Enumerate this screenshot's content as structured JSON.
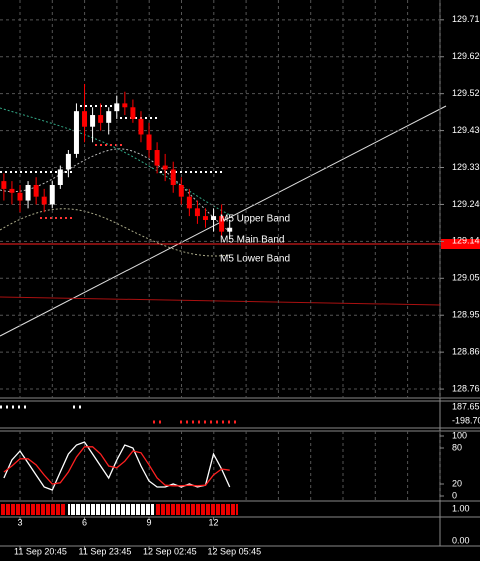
{
  "chart_data": [
    {
      "type": "candlestick",
      "x": [
        2.25,
        2.625,
        3,
        3.375,
        3.75,
        4.125,
        4.5,
        4.875,
        5.25,
        5.625,
        6,
        6.375,
        6.75,
        7.125,
        7.5,
        7.875,
        8.25,
        8.625,
        9,
        9.375,
        9.75,
        10.125,
        10.5,
        10.875,
        11.25,
        11.625,
        12,
        12.375,
        12.75
      ],
      "open": [
        129.3,
        129.28,
        129.27,
        129.25,
        129.29,
        129.26,
        129.24,
        129.29,
        129.33,
        129.37,
        129.48,
        129.44,
        129.47,
        129.45,
        129.48,
        129.5,
        129.49,
        129.46,
        129.42,
        129.38,
        129.34,
        129.33,
        129.29,
        129.26,
        129.23,
        129.21,
        129.2,
        129.21,
        129.17
      ],
      "high": [
        129.32,
        129.3,
        129.29,
        129.3,
        129.31,
        129.28,
        129.3,
        129.34,
        129.38,
        129.5,
        129.55,
        129.49,
        129.5,
        129.49,
        129.52,
        129.53,
        129.51,
        129.48,
        129.45,
        129.4,
        129.37,
        129.35,
        129.31,
        129.28,
        129.25,
        129.23,
        129.23,
        129.24,
        129.2
      ],
      "low": [
        129.25,
        129.24,
        129.22,
        129.23,
        129.24,
        129.22,
        129.23,
        129.28,
        129.31,
        129.36,
        129.4,
        129.4,
        129.43,
        129.42,
        129.46,
        129.47,
        129.45,
        129.4,
        129.36,
        129.32,
        129.3,
        129.27,
        129.24,
        129.21,
        129.19,
        129.18,
        129.17,
        129.16,
        129.15
      ],
      "close": [
        129.28,
        129.27,
        129.25,
        129.29,
        129.26,
        129.24,
        129.29,
        129.33,
        129.37,
        129.48,
        129.44,
        129.47,
        129.45,
        129.48,
        129.5,
        129.49,
        129.46,
        129.42,
        129.38,
        129.34,
        129.33,
        129.29,
        129.26,
        129.23,
        129.21,
        129.2,
        129.21,
        129.17,
        129.18
      ],
      "up_color": "#ffffff",
      "down_color": "#ff0000",
      "xlim": [
        2.07,
        22.53
      ],
      "xticks": [
        {
          "value": 3,
          "label": "11 Sep 20:45"
        },
        {
          "value": 6,
          "label": "11 Sep 23:45"
        },
        {
          "value": 9,
          "label": "12 Sep 02:45"
        },
        {
          "value": 12,
          "label": "12 Sep 05:45"
        }
      ],
      "counter_ticks": [
        3,
        6,
        9,
        12
      ],
      "ylim": [
        128.742,
        129.766
      ],
      "yticks": [
        129.715,
        {
          "value": 129.62,
          "label": "129.620"
        },
        129.525,
        {
          "value": 129.43,
          "label": "129.430"
        },
        129.335,
        {
          "value": 129.24,
          "label": "129.240"
        },
        129.145,
        {
          "value": 129.05,
          "label": "129.050"
        },
        128.955,
        {
          "value": 128.86,
          "label": "128.860"
        },
        128.765
      ],
      "grid": true,
      "annotations": [
        {
          "text": "M5 Upper Band",
          "color": "#33cccc"
        },
        {
          "text": "M5 Main Band",
          "color": "#ffffff"
        },
        {
          "text": "M5 Lower Band",
          "color": "#e6e65c"
        }
      ]
    },
    {
      "type": "line",
      "x": [
        2.25,
        2.625,
        3,
        3.375,
        3.75,
        4.125,
        4.5,
        4.875,
        5.25,
        5.625,
        6,
        6.375,
        6.75,
        7.125,
        7.5,
        7.875,
        8.25,
        8.625,
        9,
        9.375,
        9.75,
        10.125,
        10.5,
        10.875,
        11.25,
        11.625,
        12,
        12.375,
        12.75
      ],
      "series": [
        {
          "name": "Main",
          "color": "#ffffff",
          "values": [
            30,
            60,
            75,
            55,
            35,
            15,
            10,
            40,
            70,
            85,
            90,
            70,
            50,
            30,
            60,
            85,
            80,
            50,
            25,
            15,
            15,
            20,
            15,
            20,
            15,
            18,
            70,
            45,
            15
          ]
        },
        {
          "name": "Signal",
          "color": "#ff2020",
          "values": [
            40,
            50,
            62,
            62,
            52,
            35,
            20,
            22,
            40,
            65,
            82,
            82,
            70,
            50,
            47,
            58,
            75,
            72,
            52,
            30,
            18,
            17,
            17,
            18,
            17,
            18,
            35,
            45,
            43
          ]
        }
      ],
      "ylim": [
        0,
        100
      ],
      "yticks": [
        0,
        20,
        80,
        100
      ]
    }
  ],
  "indicator_panel": {
    "labels": [
      "187.651",
      "-198.70"
    ]
  },
  "strip_panel": {
    "labels": [
      "1.00",
      "0.00"
    ]
  }
}
